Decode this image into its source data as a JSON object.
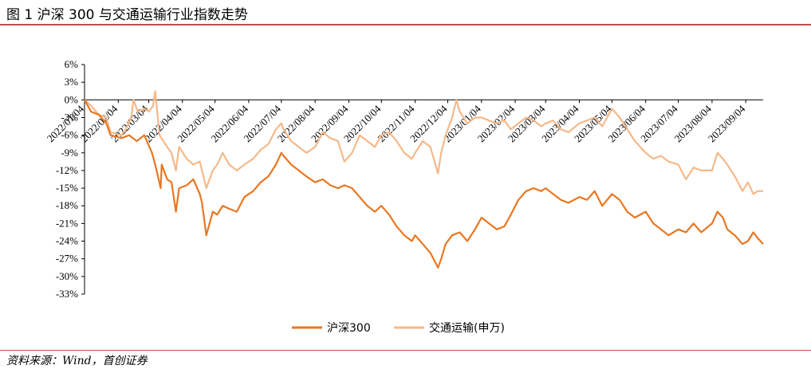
{
  "header": {
    "title": "图 1 沪深 300 与交通运输行业指数走势"
  },
  "footer": {
    "source": "资料来源：Wind，首创证券"
  },
  "colors": {
    "rule": "#c0504d",
    "series1": "#e87722",
    "series2": "#f5b98a"
  },
  "chart_data": {
    "type": "line",
    "ylabel": "",
    "xlabel": "",
    "ylim": [
      -33,
      6
    ],
    "yticks": [
      6,
      3,
      0,
      -3,
      -6,
      -9,
      -12,
      -15,
      -18,
      -21,
      -24,
      -27,
      -30,
      -33
    ],
    "y_tick_suffix": "%",
    "x_ticks": [
      "2022/01/04",
      "2022/02/04",
      "2022/03/04",
      "2022/04/04",
      "2022/05/04",
      "2022/06/04",
      "2022/07/04",
      "2022/08/04",
      "2022/09/04",
      "2022/10/04",
      "2022/11/04",
      "2022/12/04",
      "2023/01/04",
      "2023/02/04",
      "2023/03/04",
      "2023/04/04",
      "2023/05/04",
      "2023/06/04",
      "2023/07/04",
      "2023/08/04",
      "2023/09/04"
    ],
    "x_range": [
      "2022/01/04",
      "2023/09/20"
    ],
    "grid": false,
    "legend_position": "bottom",
    "series": [
      {
        "name": "沪深300",
        "points": [
          [
            "2022/01/04",
            0
          ],
          [
            "2022/01/10",
            -2
          ],
          [
            "2022/01/17",
            -2.5
          ],
          [
            "2022/01/24",
            -4
          ],
          [
            "2022/01/28",
            -6
          ],
          [
            "2022/02/07",
            -6.5
          ],
          [
            "2022/02/14",
            -6
          ],
          [
            "2022/02/21",
            -7
          ],
          [
            "2022/02/28",
            -6
          ],
          [
            "2022/03/07",
            -9
          ],
          [
            "2022/03/10",
            -11
          ],
          [
            "2022/03/15",
            -15
          ],
          [
            "2022/03/16",
            -11
          ],
          [
            "2022/03/21",
            -13.5
          ],
          [
            "2022/03/25",
            -14
          ],
          [
            "2022/03/29",
            -19
          ],
          [
            "2022/04/01",
            -15
          ],
          [
            "2022/04/08",
            -14.5
          ],
          [
            "2022/04/14",
            -13.5
          ],
          [
            "2022/04/20",
            -16
          ],
          [
            "2022/04/22",
            -17.5
          ],
          [
            "2022/04/26",
            -23
          ],
          [
            "2022/05/02",
            -19
          ],
          [
            "2022/05/06",
            -19.5
          ],
          [
            "2022/05/11",
            -18
          ],
          [
            "2022/05/17",
            -18.5
          ],
          [
            "2022/05/24",
            -19
          ],
          [
            "2022/05/31",
            -16.5
          ],
          [
            "2022/06/08",
            -15.5
          ],
          [
            "2022/06/15",
            -14
          ],
          [
            "2022/06/22",
            -13
          ],
          [
            "2022/06/29",
            -11
          ],
          [
            "2022/07/04",
            -9
          ],
          [
            "2022/07/06",
            -9.5
          ],
          [
            "2022/07/13",
            -11
          ],
          [
            "2022/07/20",
            -12
          ],
          [
            "2022/07/27",
            -13
          ],
          [
            "2022/08/04",
            -14
          ],
          [
            "2022/08/11",
            -13.5
          ],
          [
            "2022/08/18",
            -14.5
          ],
          [
            "2022/08/25",
            -15
          ],
          [
            "2022/08/31",
            -14.5
          ],
          [
            "2022/09/07",
            -15
          ],
          [
            "2022/09/14",
            -16.5
          ],
          [
            "2022/09/21",
            -18
          ],
          [
            "2022/09/28",
            -19
          ],
          [
            "2022/10/04",
            -18
          ],
          [
            "2022/10/11",
            -19.5
          ],
          [
            "2022/10/18",
            -21.5
          ],
          [
            "2022/10/25",
            -23
          ],
          [
            "2022/11/01",
            -24
          ],
          [
            "2022/11/04",
            -23
          ],
          [
            "2022/11/11",
            -24.5
          ],
          [
            "2022/11/18",
            -26
          ],
          [
            "2022/11/25",
            -28.5
          ],
          [
            "2022/11/28",
            -27
          ],
          [
            "2022/12/02",
            -24.5
          ],
          [
            "2022/12/08",
            -23
          ],
          [
            "2022/12/15",
            -22.5
          ],
          [
            "2022/12/22",
            -24
          ],
          [
            "2022/12/29",
            -22
          ],
          [
            "2023/01/04",
            -20
          ],
          [
            "2023/01/11",
            -21
          ],
          [
            "2023/01/18",
            -22
          ],
          [
            "2023/01/25",
            -21.5
          ],
          [
            "2023/01/31",
            -19.5
          ],
          [
            "2023/02/07",
            -17
          ],
          [
            "2023/02/14",
            -15.5
          ],
          [
            "2023/02/21",
            -15
          ],
          [
            "2023/02/28",
            -15.5
          ],
          [
            "2023/03/04",
            -15
          ],
          [
            "2023/03/11",
            -16
          ],
          [
            "2023/03/18",
            -17
          ],
          [
            "2023/03/25",
            -17.5
          ],
          [
            "2023/04/04",
            -16.5
          ],
          [
            "2023/04/11",
            -17
          ],
          [
            "2023/04/18",
            -15.5
          ],
          [
            "2023/04/25",
            -18
          ],
          [
            "2023/05/04",
            -16
          ],
          [
            "2023/05/11",
            -17
          ],
          [
            "2023/05/18",
            -19
          ],
          [
            "2023/05/25",
            -20
          ],
          [
            "2023/06/04",
            -19
          ],
          [
            "2023/06/11",
            -21
          ],
          [
            "2023/06/18",
            -22
          ],
          [
            "2023/06/25",
            -23
          ],
          [
            "2023/07/04",
            -22
          ],
          [
            "2023/07/11",
            -22.5
          ],
          [
            "2023/07/18",
            -21
          ],
          [
            "2023/07/25",
            -22.5
          ],
          [
            "2023/08/04",
            -21
          ],
          [
            "2023/08/09",
            -19
          ],
          [
            "2023/08/14",
            -20
          ],
          [
            "2023/08/18",
            -22
          ],
          [
            "2023/08/25",
            -23
          ],
          [
            "2023/09/01",
            -24.5
          ],
          [
            "2023/09/06",
            -24
          ],
          [
            "2023/09/11",
            -22.5
          ],
          [
            "2023/09/15",
            -23.5
          ],
          [
            "2023/09/20",
            -24.5
          ]
        ]
      },
      {
        "name": "交通运输(申万)",
        "points": [
          [
            "2022/01/04",
            0
          ],
          [
            "2022/01/10",
            -1
          ],
          [
            "2022/01/17",
            -2.5
          ],
          [
            "2022/01/24",
            -3
          ],
          [
            "2022/01/28",
            -5.5
          ],
          [
            "2022/02/07",
            -6
          ],
          [
            "2022/02/11",
            -5
          ],
          [
            "2022/02/16",
            -3
          ],
          [
            "2022/02/18",
            0
          ],
          [
            "2022/02/22",
            -2
          ],
          [
            "2022/02/28",
            -1.5
          ],
          [
            "2022/03/04",
            -2
          ],
          [
            "2022/03/08",
            -1
          ],
          [
            "2022/03/10",
            1.5
          ],
          [
            "2022/03/14",
            -6
          ],
          [
            "2022/03/21",
            -8
          ],
          [
            "2022/03/25",
            -9
          ],
          [
            "2022/03/29",
            -12
          ],
          [
            "2022/04/01",
            -8
          ],
          [
            "2022/04/08",
            -10
          ],
          [
            "2022/04/14",
            -11
          ],
          [
            "2022/04/20",
            -10.5
          ],
          [
            "2022/04/26",
            -15
          ],
          [
            "2022/05/02",
            -12
          ],
          [
            "2022/05/06",
            -11
          ],
          [
            "2022/05/11",
            -9
          ],
          [
            "2022/05/17",
            -11
          ],
          [
            "2022/05/24",
            -12
          ],
          [
            "2022/05/31",
            -11
          ],
          [
            "2022/06/08",
            -10
          ],
          [
            "2022/06/15",
            -8.5
          ],
          [
            "2022/06/22",
            -7.5
          ],
          [
            "2022/06/29",
            -5
          ],
          [
            "2022/07/04",
            -4
          ],
          [
            "2022/07/06",
            -5
          ],
          [
            "2022/07/13",
            -7
          ],
          [
            "2022/07/20",
            -8
          ],
          [
            "2022/07/27",
            -9
          ],
          [
            "2022/08/04",
            -8
          ],
          [
            "2022/08/11",
            -5.5
          ],
          [
            "2022/08/18",
            -6.5
          ],
          [
            "2022/08/25",
            -7
          ],
          [
            "2022/08/31",
            -10.5
          ],
          [
            "2022/09/07",
            -9
          ],
          [
            "2022/09/14",
            -6
          ],
          [
            "2022/09/21",
            -7
          ],
          [
            "2022/09/28",
            -8
          ],
          [
            "2022/10/04",
            -6
          ],
          [
            "2022/10/11",
            -5.5
          ],
          [
            "2022/10/18",
            -7
          ],
          [
            "2022/10/25",
            -9
          ],
          [
            "2022/11/01",
            -10
          ],
          [
            "2022/11/04",
            -9
          ],
          [
            "2022/11/11",
            -7
          ],
          [
            "2022/11/18",
            -8
          ],
          [
            "2022/11/25",
            -12.5
          ],
          [
            "2022/11/28",
            -9
          ],
          [
            "2022/12/02",
            -6
          ],
          [
            "2022/12/08",
            -3
          ],
          [
            "2022/12/12",
            0
          ],
          [
            "2022/12/15",
            -2
          ],
          [
            "2022/12/22",
            -4
          ],
          [
            "2022/12/29",
            -3
          ],
          [
            "2023/01/04",
            -3
          ],
          [
            "2023/01/11",
            -3.5
          ],
          [
            "2023/01/18",
            -4
          ],
          [
            "2023/01/25",
            -3.5
          ],
          [
            "2023/01/31",
            -5
          ],
          [
            "2023/02/07",
            -4
          ],
          [
            "2023/02/14",
            -3
          ],
          [
            "2023/02/21",
            -3.5
          ],
          [
            "2023/02/28",
            -4.5
          ],
          [
            "2023/03/04",
            -4
          ],
          [
            "2023/03/11",
            -3.5
          ],
          [
            "2023/03/18",
            -5
          ],
          [
            "2023/03/25",
            -5.5
          ],
          [
            "2023/04/04",
            -4
          ],
          [
            "2023/04/11",
            -3.5
          ],
          [
            "2023/04/18",
            -3
          ],
          [
            "2023/04/25",
            -4.5
          ],
          [
            "2023/05/04",
            -1.5
          ],
          [
            "2023/05/11",
            -3
          ],
          [
            "2023/05/18",
            -5
          ],
          [
            "2023/05/25",
            -7
          ],
          [
            "2023/06/04",
            -9
          ],
          [
            "2023/06/11",
            -10
          ],
          [
            "2023/06/18",
            -9.5
          ],
          [
            "2023/06/25",
            -10.5
          ],
          [
            "2023/07/04",
            -11
          ],
          [
            "2023/07/11",
            -13.5
          ],
          [
            "2023/07/18",
            -11.5
          ],
          [
            "2023/07/25",
            -12
          ],
          [
            "2023/08/04",
            -12
          ],
          [
            "2023/08/09",
            -9
          ],
          [
            "2023/08/14",
            -10
          ],
          [
            "2023/08/18",
            -11
          ],
          [
            "2023/08/25",
            -13
          ],
          [
            "2023/09/01",
            -15.5
          ],
          [
            "2023/09/06",
            -14
          ],
          [
            "2023/09/11",
            -16
          ],
          [
            "2023/09/15",
            -15.5
          ],
          [
            "2023/09/20",
            -15.5
          ]
        ]
      }
    ]
  }
}
